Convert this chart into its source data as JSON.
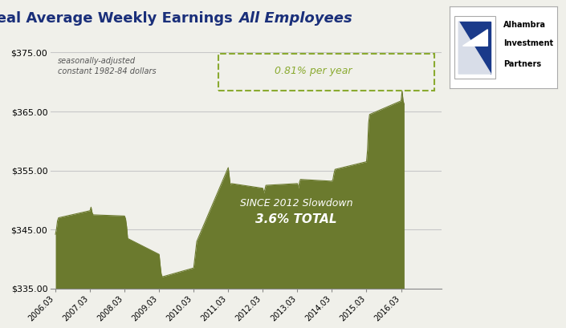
{
  "title_regular": "Real Average Weekly Earnings ",
  "title_italic": "All Employees",
  "subtitle_line1": "seasonally-adjusted",
  "subtitle_line2": "constant 1982-84 dollars",
  "annotation_box_label": "0.81% per year",
  "annotation_center_label1": "SINCE 2012 Slowdown",
  "annotation_center_label2": "3.6% TOTAL",
  "ylim": [
    335,
    375
  ],
  "yticks": [
    335,
    345,
    355,
    365,
    375
  ],
  "fill_color": "#6b7a2e",
  "background_color": "#f0f0ea",
  "grid_color": "#c8c8c8",
  "dashed_box_color": "#8aaa30",
  "annotation_color": "#8aaa30",
  "x_dates": [
    2006.03,
    2006.06,
    2006.09,
    2006.12,
    2007.03,
    2007.06,
    2007.09,
    2007.12,
    2008.03,
    2008.06,
    2008.09,
    2008.12,
    2009.03,
    2009.06,
    2009.09,
    2009.12,
    2010.03,
    2010.06,
    2010.09,
    2010.12,
    2011.03,
    2011.06,
    2011.09,
    2011.12,
    2012.03,
    2012.06,
    2012.09,
    2012.12,
    2013.03,
    2013.06,
    2013.09,
    2013.12,
    2014.03,
    2014.06,
    2014.09,
    2014.12,
    2015.03,
    2015.06,
    2015.09,
    2015.12,
    2016.03,
    2016.06,
    2016.09,
    2016.12
  ],
  "values": [
    344.2,
    345.1,
    346.5,
    347.0,
    348.2,
    348.8,
    347.9,
    347.5,
    347.3,
    346.8,
    345.5,
    343.5,
    340.8,
    339.0,
    337.5,
    337.0,
    338.5,
    340.0,
    341.5,
    343.0,
    355.5,
    354.0,
    352.5,
    352.8,
    352.0,
    351.2,
    351.8,
    352.5,
    352.8,
    352.0,
    353.0,
    353.5,
    353.2,
    353.5,
    354.5,
    355.2,
    356.5,
    358.5,
    363.0,
    364.5,
    366.8,
    368.5,
    366.8,
    366.2
  ],
  "xtick_labels": [
    "2006.03",
    "2007.03",
    "2008.03",
    "2009.03",
    "2010.03",
    "2011.03",
    "2012.03",
    "2013.03",
    "2014.03",
    "2015.03",
    "2016.03"
  ],
  "xlim_min": 2005.9,
  "xlim_max": 2017.2
}
